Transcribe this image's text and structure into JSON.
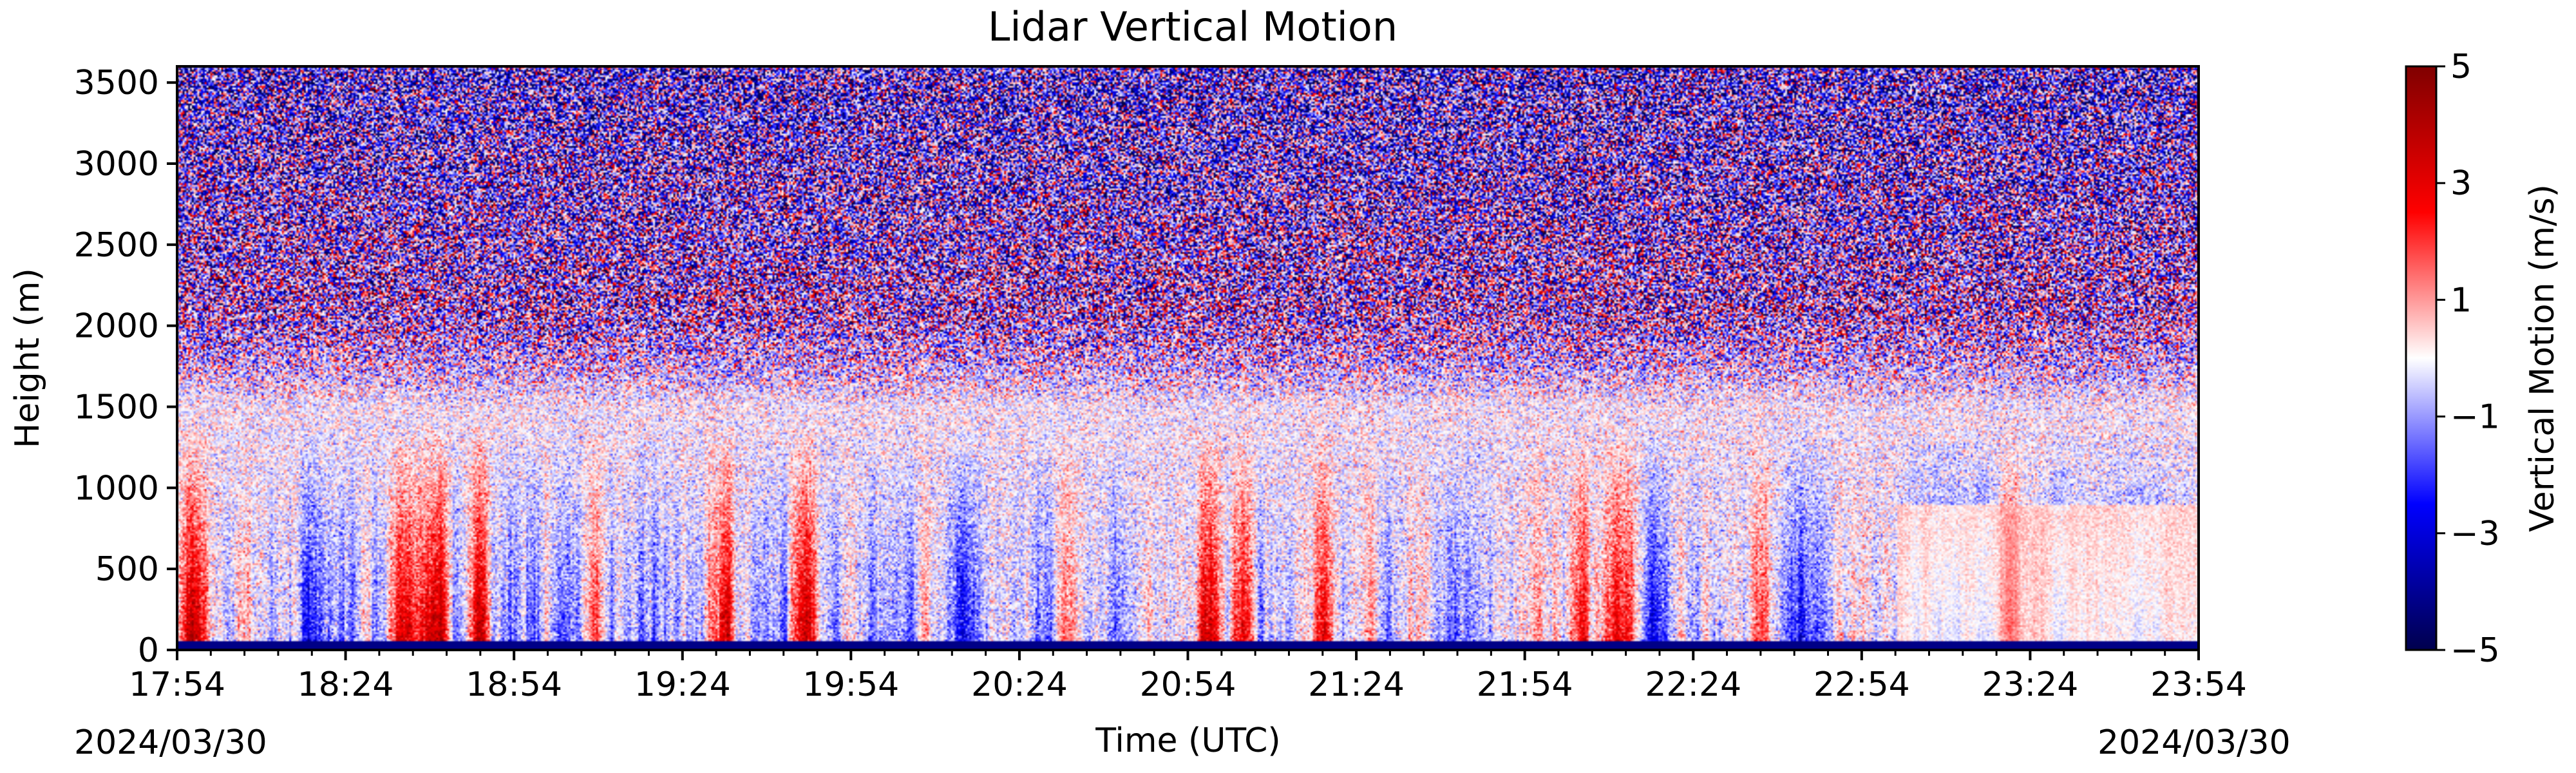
{
  "chart_data": {
    "type": "heatmap",
    "title": "Lidar Vertical Motion",
    "xlabel": "Time (UTC)",
    "ylabel": "Height (m)",
    "date_labels": [
      "2024/03/30",
      "2024/03/30"
    ],
    "x_ticks": [
      "17:54",
      "18:24",
      "18:54",
      "19:24",
      "19:54",
      "20:24",
      "20:54",
      "21:24",
      "21:54",
      "22:24",
      "22:54",
      "23:24",
      "23:54"
    ],
    "xlim": [
      "17:54",
      "23:54"
    ],
    "y_ticks": [
      0,
      500,
      1000,
      1500,
      2000,
      2500,
      3000,
      3500
    ],
    "ylim": [
      0,
      3600
    ],
    "colorbar": {
      "label": "Vertical Motion (m/s)",
      "ticks": [
        5,
        3,
        1,
        -1,
        -3,
        -5
      ],
      "range": [
        -5,
        5
      ],
      "colormap": "seismic"
    },
    "colors": {
      "negative": "#00004d",
      "zero": "#ffffff",
      "positive": "#800000"
    },
    "updraft_plumes_utc": [
      "17:56",
      "18:06",
      "18:40",
      "18:48",
      "19:08",
      "19:32",
      "19:46",
      "20:32",
      "20:58",
      "21:04",
      "21:18",
      "22:04",
      "22:12",
      "22:36",
      "23:20"
    ],
    "features": {
      "noise_above_m": 1500,
      "surface_band_m": 60
    }
  }
}
